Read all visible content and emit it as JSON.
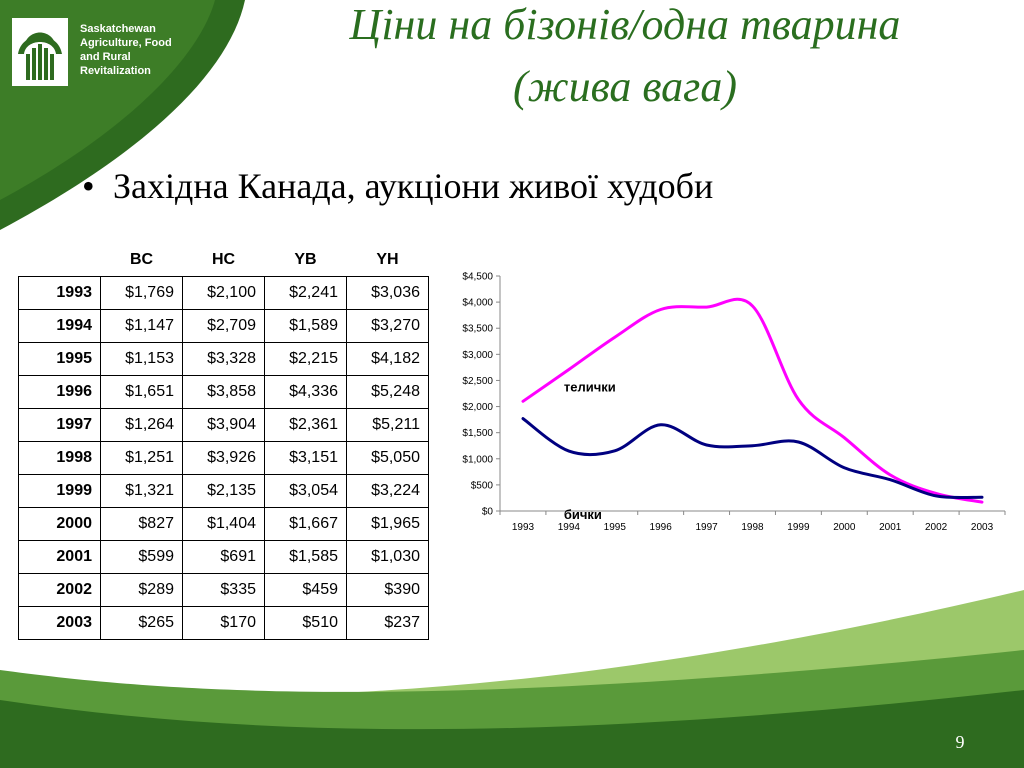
{
  "org": {
    "lines": [
      "Saskatchewan",
      "Agriculture, Food",
      "and Rural",
      "Revitalization"
    ],
    "logo_icon": "wheat-sheaf-icon"
  },
  "title": {
    "line1": "Ціни на бізонів/одна тварина",
    "line2": "(жива вага)"
  },
  "bullet": {
    "glyph": "•",
    "text": "Західна Канада, аукціони живої худоби"
  },
  "table": {
    "headers": [
      "BC",
      "HC",
      "YB",
      "YH"
    ],
    "rows": [
      {
        "year": "1993",
        "values": [
          "$1,769",
          "$2,100",
          "$2,241",
          "$3,036"
        ]
      },
      {
        "year": "1994",
        "values": [
          "$1,147",
          "$2,709",
          "$1,589",
          "$3,270"
        ]
      },
      {
        "year": "1995",
        "values": [
          "$1,153",
          "$3,328",
          "$2,215",
          "$4,182"
        ]
      },
      {
        "year": "1996",
        "values": [
          "$1,651",
          "$3,858",
          "$4,336",
          "$5,248"
        ]
      },
      {
        "year": "1997",
        "values": [
          "$1,264",
          "$3,904",
          "$2,361",
          "$5,211"
        ]
      },
      {
        "year": "1998",
        "values": [
          "$1,251",
          "$3,926",
          "$3,151",
          "$5,050"
        ]
      },
      {
        "year": "1999",
        "values": [
          "$1,321",
          "$2,135",
          "$3,054",
          "$3,224"
        ]
      },
      {
        "year": "2000",
        "values": [
          "$827",
          "$1,404",
          "$1,667",
          "$1,965"
        ]
      },
      {
        "year": "2001",
        "values": [
          "$599",
          "$691",
          "$1,585",
          "$1,030"
        ]
      },
      {
        "year": "2002",
        "values": [
          "$289",
          "$335",
          "$459",
          "$390"
        ]
      },
      {
        "year": "2003",
        "values": [
          "$265",
          "$170",
          "$510",
          "$237"
        ]
      }
    ]
  },
  "chart_data": {
    "type": "line",
    "title": "",
    "xlabel": "",
    "ylabel": "",
    "x": [
      "1993",
      "1994",
      "1995",
      "1996",
      "1997",
      "1998",
      "1999",
      "2000",
      "2001",
      "2002",
      "2003"
    ],
    "ylim": [
      0,
      4500
    ],
    "yticks": [
      "$0",
      "$500",
      "$1,000",
      "$1,500",
      "$2,000",
      "$2,500",
      "$3,000",
      "$3,500",
      "$4,000",
      "$4,500"
    ],
    "ytick_values": [
      0,
      500,
      1000,
      1500,
      2000,
      2500,
      3000,
      3500,
      4000,
      4500
    ],
    "grid": false,
    "series": [
      {
        "name": "телички",
        "color": "#ff00ff",
        "values": [
          2100,
          2709,
          3328,
          3858,
          3904,
          3926,
          2135,
          1404,
          691,
          335,
          170
        ]
      },
      {
        "name": "бички",
        "color": "#000080",
        "values": [
          1769,
          1147,
          1153,
          1651,
          1264,
          1251,
          1321,
          827,
          599,
          289,
          265
        ]
      }
    ]
  },
  "colors": {
    "green_dark": "#2e6b1f",
    "green_mid": "#5a9a3a",
    "green_light": "#9cc86a",
    "title_green": "#2a6e1f"
  },
  "page_number": "9"
}
